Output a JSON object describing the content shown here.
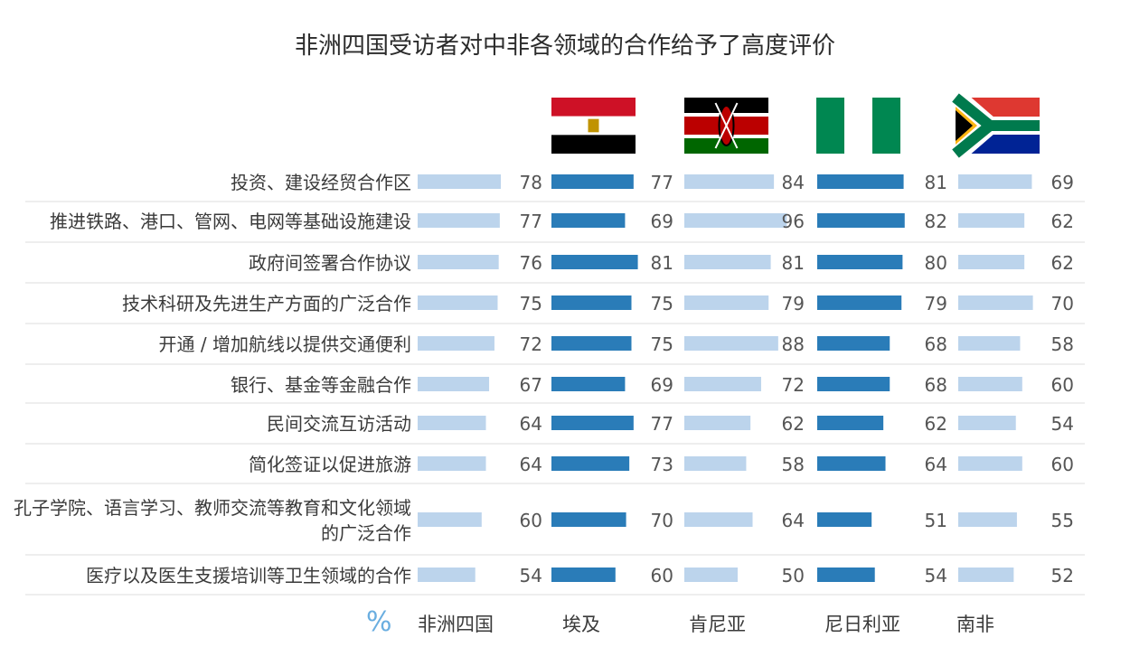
{
  "title": "非洲四国受访者对中非各领域的合作给予了高度评价",
  "chart_data": {
    "type": "bar",
    "title": "非洲四国受访者对中非各领域的合作给予了高度评价",
    "unit": "%",
    "categories": [
      "投资、建设经贸合作区",
      "推进铁路、港口、管网、电网等基础设施建设",
      "政府间签署合作协议",
      "技术科研及先进生产方面的广泛合作",
      "开通 / 增加航线以提供交通便利",
      "银行、基金等金融合作",
      "民间交流互访活动",
      "简化签证以促进旅游",
      "孔子学院、语言学习、教师交流等教育和文化领域的广泛合作",
      "医疗以及医生支援培训等卫生领域的合作"
    ],
    "series": [
      {
        "name": "非洲四国",
        "color": "#bcd4ec",
        "values": [
          78,
          77,
          76,
          75,
          72,
          67,
          64,
          64,
          60,
          54
        ]
      },
      {
        "name": "埃及",
        "color": "#2a7cb8",
        "values": [
          77,
          69,
          81,
          75,
          75,
          69,
          77,
          73,
          70,
          60
        ]
      },
      {
        "name": "肯尼亚",
        "color": "#bcd4ec",
        "values": [
          84,
          96,
          81,
          79,
          88,
          72,
          62,
          58,
          64,
          50
        ]
      },
      {
        "name": "尼日利亚",
        "color": "#2a7cb8",
        "values": [
          81,
          82,
          80,
          79,
          68,
          68,
          62,
          64,
          51,
          54
        ]
      },
      {
        "name": "南非",
        "color": "#bcd4ec",
        "values": [
          69,
          62,
          62,
          70,
          58,
          60,
          54,
          60,
          55,
          52
        ]
      }
    ],
    "flags": [
      "egypt-flag",
      "kenya-flag",
      "nigeria-flag",
      "south-africa-flag"
    ]
  }
}
